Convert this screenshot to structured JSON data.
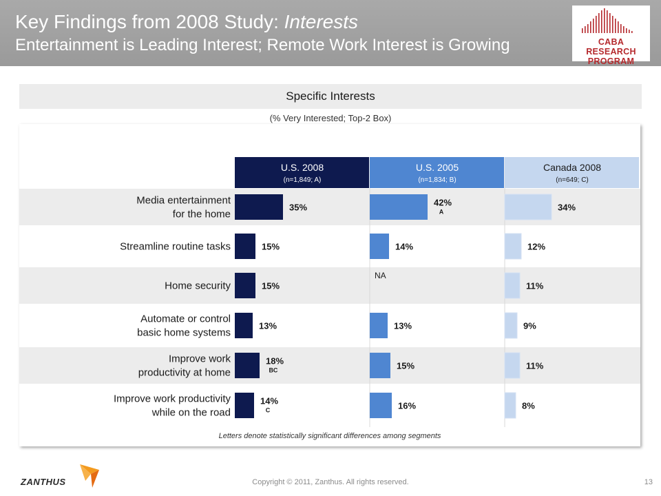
{
  "header": {
    "title_main": "Key Findings from 2008 Study: ",
    "title_italic": "Interests",
    "subtitle": "Entertainment is Leading Interest; Remote Work Interest is Growing"
  },
  "logo": {
    "line1": "CABA RESEARCH",
    "line2": "PROGRAM",
    "color": "#b5282c"
  },
  "section": {
    "title": "Specific Interests",
    "subtitle": "(% Very Interested; Top-2 Box)"
  },
  "chart_data": {
    "type": "bar",
    "orientation": "horizontal",
    "categories": [
      [
        "Media entertainment",
        "for the home"
      ],
      [
        "Streamline routine tasks"
      ],
      [
        "Home security"
      ],
      [
        "Automate or control",
        "basic home systems"
      ],
      [
        "Improve work",
        "productivity at home"
      ],
      [
        "Improve work productivity",
        "while on the road"
      ]
    ],
    "series": [
      {
        "name": "U.S. 2008",
        "sample": "(n=1,849; A)",
        "color": "#0e1a4f",
        "header_text_color": "#ffffff",
        "values": [
          35,
          15,
          15,
          13,
          18,
          14
        ],
        "labels": [
          "35%",
          "15%",
          "15%",
          "13%",
          "18%",
          "14%"
        ],
        "sig": [
          "",
          "",
          "",
          "",
          "BC",
          "C"
        ]
      },
      {
        "name": "U.S. 2005",
        "sample": "(n=1,834; B)",
        "color": "#4f86d1",
        "header_text_color": "#ffffff",
        "values": [
          42,
          14,
          null,
          13,
          15,
          16
        ],
        "labels": [
          "42%",
          "14%",
          "NA",
          "13%",
          "15%",
          "16%"
        ],
        "sig": [
          "A",
          "",
          "",
          "",
          "",
          ""
        ]
      },
      {
        "name": "Canada 2008",
        "sample": "(n=649; C)",
        "color": "#c5d7ef",
        "header_text_color": "#1a1a1a",
        "values": [
          34,
          12,
          11,
          9,
          11,
          8
        ],
        "labels": [
          "34%",
          "12%",
          "11%",
          "9%",
          "11%",
          "8%"
        ],
        "sig": [
          "",
          "",
          "",
          "",
          "",
          ""
        ]
      }
    ],
    "row_stripe_color": "#ececec"
  },
  "footnote": "Letters denote statistically significant differences among segments",
  "footer": {
    "brand": "ZANTHUS",
    "copyright": "Copyright © 2011, Zanthus. All rights reserved.",
    "page": "13"
  }
}
